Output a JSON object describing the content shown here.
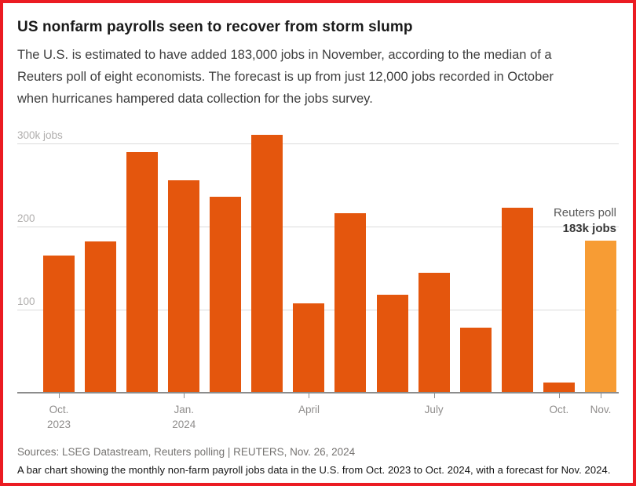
{
  "header": {
    "title": "US nonfarm payrolls seen to recover from storm slump",
    "subtitle_lines": [
      "The U.S. is estimated to have added 183,000 jobs in November, according to the median of a",
      "Reuters poll of eight economists. The forecast is up from just 12,000 jobs recorded in October",
      "when hurricanes hampered data collection for the jobs survey."
    ]
  },
  "chart_data": {
    "type": "bar",
    "title": "US nonfarm payrolls seen to recover from storm slump",
    "unit": "thousands of jobs",
    "categories": [
      "Oct. 2023",
      "Nov. 2023",
      "Dec. 2023",
      "Jan. 2024",
      "Feb. 2024",
      "Mar. 2024",
      "Apr. 2024",
      "May 2024",
      "Jun. 2024",
      "Jul. 2024",
      "Aug. 2024",
      "Sep. 2024",
      "Oct. 2024",
      "Nov. 2024 (forecast)"
    ],
    "values": [
      165,
      182,
      290,
      256,
      236,
      310,
      108,
      216,
      118,
      144,
      78,
      223,
      12,
      183
    ],
    "forecast_index": 13,
    "ylim": [
      0,
      300
    ],
    "grid": true,
    "yticks": [
      {
        "value": 300,
        "label": "300k jobs"
      },
      {
        "value": 200,
        "label": "200"
      },
      {
        "value": 100,
        "label": "100"
      }
    ],
    "xticks": [
      {
        "index": 0,
        "line1": "Oct.",
        "line2": "2023"
      },
      {
        "index": 3,
        "line1": "Jan.",
        "line2": "2024"
      },
      {
        "index": 6,
        "line1": "April",
        "line2": ""
      },
      {
        "index": 9,
        "line1": "July",
        "line2": ""
      },
      {
        "index": 12,
        "line1": "Oct.",
        "line2": ""
      },
      {
        "index": 13,
        "line1": "Nov.",
        "line2": ""
      }
    ],
    "annotation": {
      "line1": "Reuters poll",
      "line2": "183k jobs"
    },
    "colors": {
      "bar": "#E4560D",
      "forecast_bar": "#F79C34",
      "gridline": "#DBDBDB",
      "axis_line": "#8C8C8C",
      "ytick_label": "#B0AEAD",
      "xtick_label": "#8F8D8C",
      "frame": "#EB1B22"
    }
  },
  "footer": {
    "sources": "Sources: LSEG Datastream, Reuters polling | REUTERS, Nov. 26, 2024",
    "caption": "A bar chart showing the monthly non-farm payroll jobs data in the U.S. from Oct. 2023 to Oct. 2024, with a forecast for Nov. 2024."
  }
}
